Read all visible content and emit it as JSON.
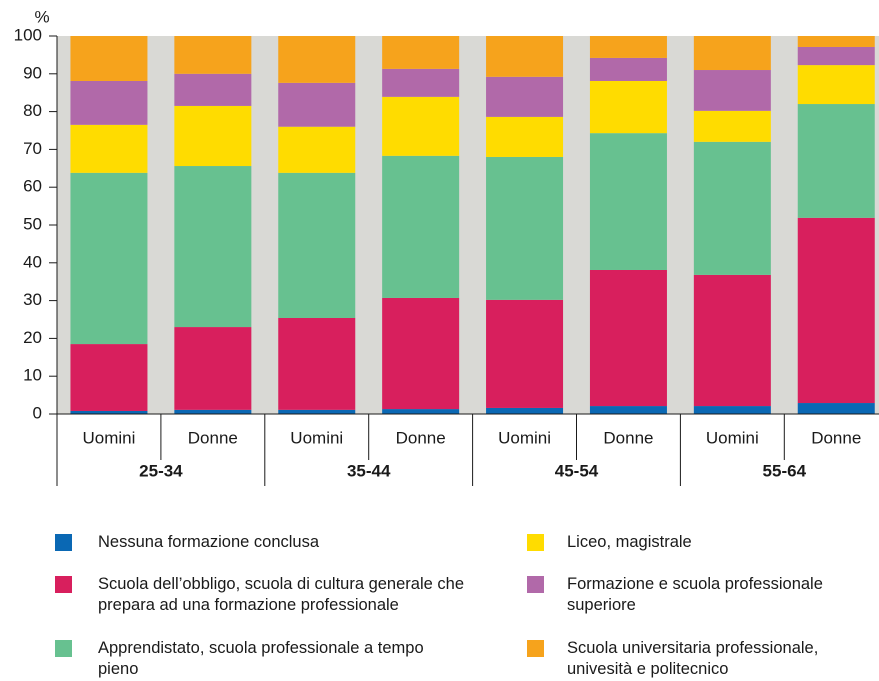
{
  "chart_data": {
    "type": "stacked-bar",
    "y_unit": "%",
    "categories": [
      "Uomini",
      "Donne",
      "Uomini",
      "Donne",
      "Uomini",
      "Donne",
      "Uomini",
      "Donne"
    ],
    "groups": [
      "25-34",
      "35-44",
      "45-54",
      "55-64"
    ],
    "series": [
      {
        "name": "Nessuna formazione conclusa",
        "color": "#0a68b4",
        "values": [
          0.8,
          1.1,
          1.1,
          1.3,
          1.6,
          2.1,
          2.1,
          2.9
        ]
      },
      {
        "name": "Scuola dell’obbligo, scuola di cultura generale che prepara ad una formazione professionale",
        "color": "#d81f5d",
        "values": [
          17.7,
          21.9,
          24.3,
          29.4,
          28.6,
          36.0,
          34.7,
          49.0
        ]
      },
      {
        "name": "Apprendistato, scuola professionale a tempo pieno",
        "color": "#67c190",
        "values": [
          45.3,
          42.6,
          38.4,
          37.6,
          37.8,
          36.2,
          35.2,
          30.1
        ]
      },
      {
        "name": "Liceo, magistrale",
        "color": "#ffdc00",
        "values": [
          12.7,
          15.9,
          12.2,
          15.6,
          10.6,
          13.8,
          8.2,
          10.3
        ]
      },
      {
        "name": "Formazione e scuola professionale superiore",
        "color": "#b169a9",
        "values": [
          11.6,
          8.5,
          11.6,
          7.4,
          10.6,
          6.1,
          10.8,
          4.8
        ]
      },
      {
        "name": "Scuola universitaria professionale, univesità e politecnico",
        "color": "#f6a31c",
        "values": [
          11.9,
          10.0,
          12.4,
          8.7,
          10.8,
          5.8,
          9.0,
          2.9
        ]
      }
    ],
    "ylim": [
      0,
      100
    ],
    "yticks": [
      0,
      10,
      20,
      30,
      40,
      50,
      60,
      70,
      80,
      90,
      100
    ]
  }
}
